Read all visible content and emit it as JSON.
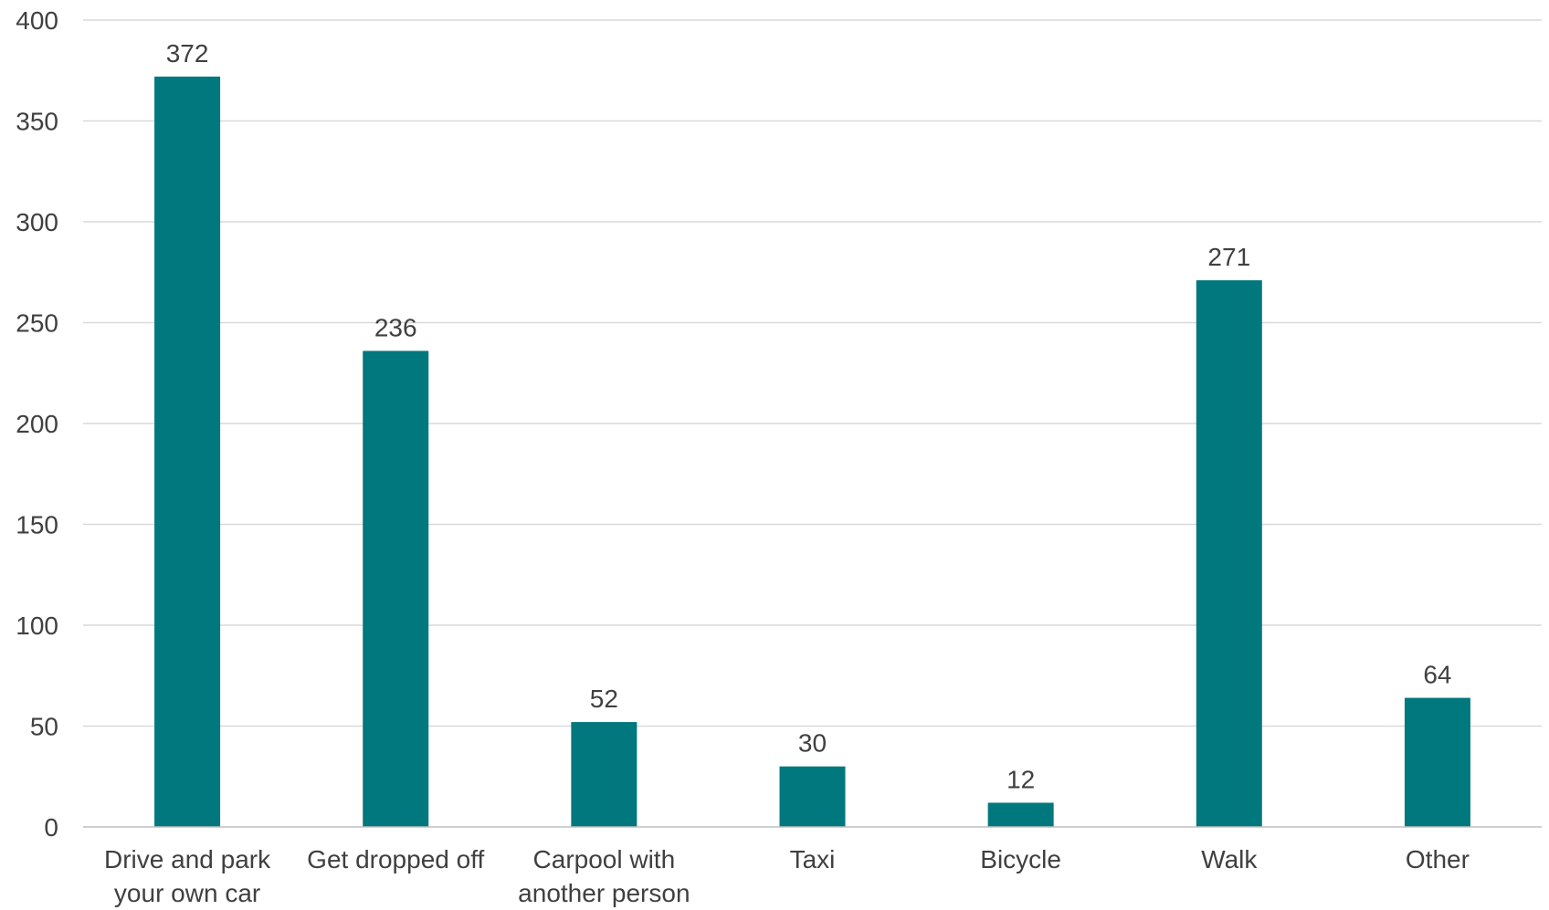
{
  "chart_data": {
    "type": "bar",
    "title": "",
    "xlabel": "",
    "ylabel": "",
    "categories": [
      [
        "Drive and park",
        "your own car"
      ],
      [
        "Get dropped off"
      ],
      [
        "Carpool with",
        "another person"
      ],
      [
        "Taxi"
      ],
      [
        "Bicycle"
      ],
      [
        "Walk"
      ],
      [
        "Other"
      ]
    ],
    "values": [
      372,
      236,
      52,
      30,
      12,
      271,
      64
    ],
    "ylim": [
      0,
      400
    ],
    "yticks": [
      0,
      50,
      100,
      150,
      200,
      250,
      300,
      350,
      400
    ],
    "grid": true,
    "legend": "none",
    "bar_color": "#00787d"
  }
}
